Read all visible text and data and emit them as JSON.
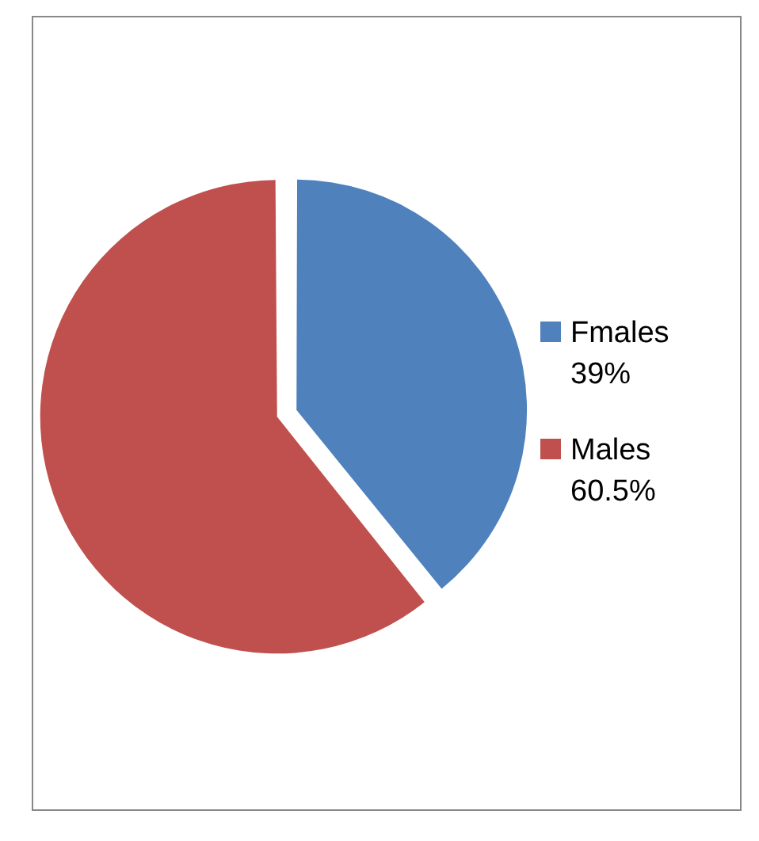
{
  "chart_data": {
    "type": "pie",
    "categories": [
      "Fmales 39%",
      "Males 60.5%"
    ],
    "values": [
      39,
      60.5
    ],
    "colors": [
      "#4f81bd",
      "#c0504d"
    ],
    "legend": "right"
  }
}
